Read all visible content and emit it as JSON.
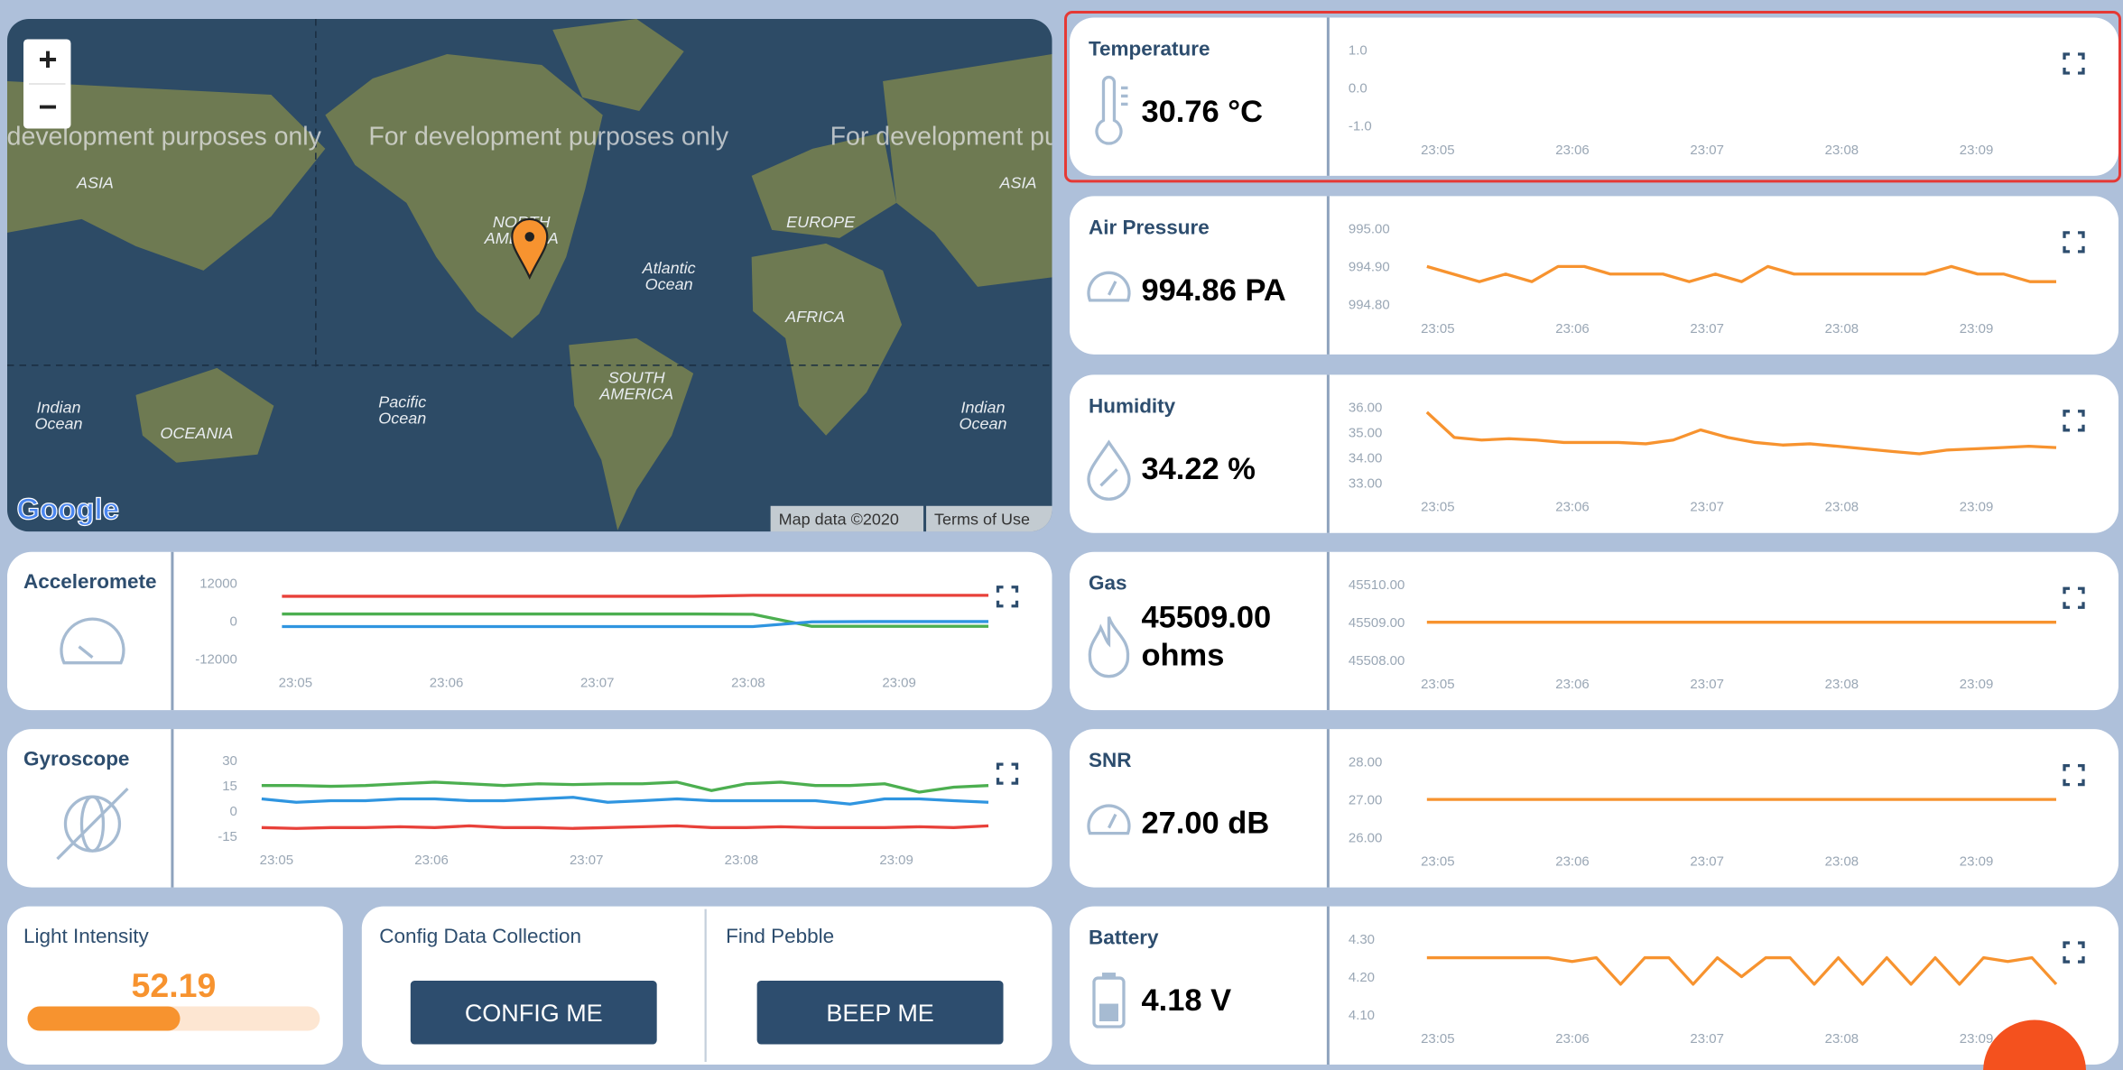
{
  "map": {
    "zoom_in": "+",
    "zoom_out": "−",
    "watermark": "For development purposes only",
    "labels": [
      "ASIA",
      "ASIA",
      "EUROPE",
      "AFRICA",
      "NORTH AMERICA",
      "SOUTH AMERICA",
      "OCEANIA",
      "Atlantic Ocean",
      "Pacific Ocean",
      "Indian Ocean",
      "Indian Ocean"
    ],
    "attribution": "Map data ©2020",
    "terms": "Terms of Use",
    "logo": "Google"
  },
  "sensors": [
    {
      "title": "Temperature",
      "reading": "30.76 °C",
      "chart": {
        "ylim": [
          -1,
          1
        ],
        "yticks": [
          {
            "value": 1,
            "label": "1.0"
          },
          {
            "value": 0,
            "label": "0.0"
          },
          {
            "value": -1,
            "label": "-1.0"
          }
        ],
        "xticks": [
          "23:05",
          "23:06",
          "23:07",
          "23:08",
          "23:09"
        ],
        "series": []
      }
    },
    {
      "title": "Air Pressure",
      "reading": "994.86 PA",
      "chart": {
        "ylim": [
          994.8,
          995
        ],
        "yticks": [
          {
            "value": 995,
            "label": "995.00"
          },
          {
            "value": 994.9,
            "label": "994.90"
          },
          {
            "value": 994.8,
            "label": "994.80"
          }
        ],
        "xticks": [
          "23:05",
          "23:06",
          "23:07",
          "23:08",
          "23:09"
        ],
        "series": [
          {
            "color": "#f7932f",
            "values": [
              994.9,
              994.88,
              994.86,
              994.88,
              994.86,
              994.9,
              994.9,
              994.88,
              994.88,
              994.88,
              994.86,
              994.88,
              994.86,
              994.9,
              994.88,
              994.88,
              994.88,
              994.88,
              994.88,
              994.88,
              994.9,
              994.88,
              994.88,
              994.86,
              994.86
            ]
          }
        ]
      }
    },
    {
      "title": "Humidity",
      "reading": "34.22 %",
      "chart": {
        "ylim": [
          33,
          36
        ],
        "yticks": [
          {
            "value": 36,
            "label": "36.00"
          },
          {
            "value": 35,
            "label": "35.00"
          },
          {
            "value": 34,
            "label": "34.00"
          },
          {
            "value": 33,
            "label": "33.00"
          }
        ],
        "xticks": [
          "23:05",
          "23:06",
          "23:07",
          "23:08",
          "23:09"
        ],
        "series": [
          {
            "color": "#f7932f",
            "values": [
              35.8,
              34.8,
              34.7,
              34.75,
              34.7,
              34.6,
              34.6,
              34.6,
              34.55,
              34.7,
              35.1,
              34.8,
              34.6,
              34.5,
              34.55,
              34.45,
              34.35,
              34.25,
              34.15,
              34.3,
              34.35,
              34.4,
              34.45,
              34.4
            ]
          }
        ]
      }
    },
    {
      "title": "Gas",
      "reading": "45509.00 ohms",
      "chart": {
        "ylim": [
          45508,
          45510
        ],
        "yticks": [
          {
            "value": 45510,
            "label": "45510.00"
          },
          {
            "value": 45509,
            "label": "45509.00"
          },
          {
            "value": 45508,
            "label": "45508.00"
          }
        ],
        "xticks": [
          "23:05",
          "23:06",
          "23:07",
          "23:08",
          "23:09"
        ],
        "series": [
          {
            "color": "#f7932f",
            "values": [
              45509,
              45509,
              45509,
              45509,
              45509,
              45509,
              45509,
              45509,
              45509,
              45509,
              45509,
              45509,
              45509,
              45509,
              45509,
              45509,
              45509,
              45509,
              45509,
              45509
            ]
          }
        ]
      }
    },
    {
      "title": "SNR",
      "reading": "27.00 dB",
      "chart": {
        "ylim": [
          26,
          28
        ],
        "yticks": [
          {
            "value": 28,
            "label": "28.00"
          },
          {
            "value": 27,
            "label": "27.00"
          },
          {
            "value": 26,
            "label": "26.00"
          }
        ],
        "xticks": [
          "23:05",
          "23:06",
          "23:07",
          "23:08",
          "23:09"
        ],
        "series": [
          {
            "color": "#f7932f",
            "values": [
              27,
              27,
              27,
              27,
              27,
              27,
              27,
              27,
              27,
              27,
              27,
              27,
              27,
              27,
              27,
              27,
              27,
              27,
              27,
              27
            ]
          }
        ]
      }
    },
    {
      "title": "Battery",
      "reading": "4.18 V",
      "chart": {
        "ylim": [
          4.1,
          4.3
        ],
        "yticks": [
          {
            "value": 4.3,
            "label": "4.30"
          },
          {
            "value": 4.2,
            "label": "4.20"
          },
          {
            "value": 4.1,
            "label": "4.10"
          }
        ],
        "xticks": [
          "23:05",
          "23:06",
          "23:07",
          "23:08",
          "23:09"
        ],
        "series": [
          {
            "color": "#f7932f",
            "values": [
              4.25,
              4.25,
              4.25,
              4.25,
              4.25,
              4.25,
              4.24,
              4.25,
              4.18,
              4.25,
              4.25,
              4.18,
              4.25,
              4.2,
              4.25,
              4.25,
              4.18,
              4.25,
              4.18,
              4.25,
              4.18,
              4.25,
              4.18,
              4.25,
              4.24,
              4.25,
              4.18
            ]
          }
        ]
      }
    }
  ],
  "motion": [
    {
      "title": "Acceleromete",
      "chart": {
        "ylim": [
          -12000,
          12000
        ],
        "yticks": [
          12000,
          0,
          -12000
        ],
        "xticks": [
          "23:05",
          "23:06",
          "23:07",
          "23:08",
          "23:09"
        ],
        "series": [
          {
            "color": "#e8413a",
            "values": [
              7800,
              7800,
              7800,
              7800,
              7800,
              7800,
              7800,
              7800,
              8100,
              8100,
              8100,
              8100,
              8100
            ]
          },
          {
            "color": "#4caf50",
            "values": [
              2200,
              2200,
              2200,
              2200,
              2200,
              2200,
              2200,
              2200,
              2100,
              -1700,
              -1700,
              -1700,
              -1700
            ]
          },
          {
            "color": "#2f95e0",
            "values": [
              -1800,
              -1800,
              -1800,
              -1800,
              -1800,
              -1800,
              -1800,
              -1800,
              -1800,
              -300,
              -200,
              -200,
              -200
            ]
          }
        ]
      }
    },
    {
      "title": "Gyroscope",
      "chart": {
        "ylim": [
          -15,
          30
        ],
        "yticks": [
          30,
          15,
          0,
          -15
        ],
        "xticks": [
          "23:05",
          "23:06",
          "23:07",
          "23:08",
          "23:09"
        ],
        "series": [
          {
            "color": "#4caf50",
            "values": [
              15,
              15,
              14.5,
              15,
              16,
              17,
              16,
              15,
              16,
              15.5,
              16,
              16,
              17,
              12,
              16,
              17,
              15,
              15,
              16,
              11,
              14,
              15
            ]
          },
          {
            "color": "#2f95e0",
            "values": [
              7,
              5,
              6,
              6,
              7,
              7,
              6,
              6,
              7,
              8,
              5,
              6,
              7,
              6,
              6,
              6,
              6,
              4,
              7,
              7,
              6,
              5
            ]
          },
          {
            "color": "#e8413a",
            "values": [
              -10,
              -10.5,
              -10,
              -10,
              -9.5,
              -10,
              -9,
              -10,
              -10,
              -10.5,
              -10,
              -9.5,
              -9,
              -10,
              -10,
              -9.5,
              -10,
              -10,
              -10,
              -9.5,
              -10,
              -9
            ]
          }
        ]
      }
    }
  ],
  "light": {
    "title": "Light Intensity",
    "value": 52.19
  },
  "actions": [
    {
      "title": "Config Data Collection",
      "button": "CONFIG ME"
    },
    {
      "title": "Find Pebble",
      "button": "BEEP ME"
    }
  ]
}
